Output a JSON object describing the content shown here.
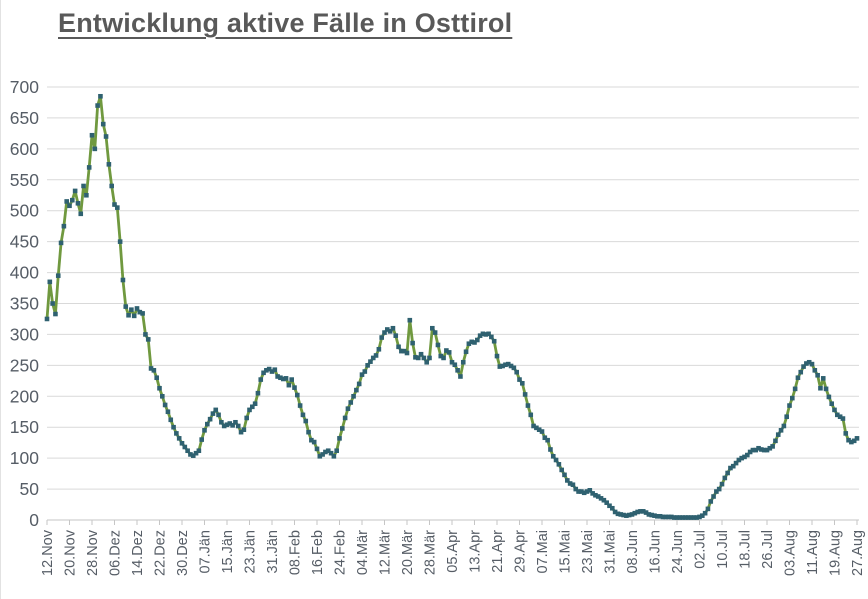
{
  "header": {
    "title": "Entwicklung aktive Fälle in Osttirol"
  },
  "chart_data": {
    "type": "line",
    "title": "Entwicklung aktive Fälle in Osttirol",
    "series_name": "aktive Fälle",
    "xlabel": "",
    "ylabel": "",
    "ylim": [
      0,
      700
    ],
    "y_tick_step": 50,
    "y_tick_labels": [
      "0",
      "50",
      "100",
      "150",
      "200",
      "250",
      "300",
      "350",
      "400",
      "450",
      "500",
      "550",
      "600",
      "650",
      "700"
    ],
    "grid": true,
    "legend": "none",
    "x_tick_labels": [
      "12.Nov",
      "20.Nov",
      "28.Nov",
      "06.Dez",
      "14.Dez",
      "22.Dez",
      "30.Dez",
      "07.Jän",
      "15.Jän",
      "23.Jän",
      "31.Jän",
      "08.Feb",
      "16.Feb",
      "24.Feb",
      "04.Mär",
      "12.Mär",
      "20.Mär",
      "28.Mär",
      "05.Apr",
      "13.Apr",
      "21.Apr",
      "29.Apr",
      "07.Mai",
      "15.Mai",
      "23.Mai",
      "31.Mai",
      "08.Jun",
      "16.Jun",
      "24.Jun",
      "02.Jul",
      "10.Jul",
      "18.Jul",
      "26.Jul",
      "03.Aug",
      "11.Aug",
      "19.Aug",
      "27.Aug"
    ],
    "tick_every_n_points": 8,
    "values": [
      325,
      385,
      350,
      333,
      395,
      448,
      475,
      515,
      508,
      517,
      532,
      512,
      495,
      540,
      525,
      570,
      622,
      600,
      670,
      685,
      640,
      620,
      575,
      540,
      510,
      505,
      450,
      388,
      345,
      331,
      340,
      330,
      342,
      336,
      334,
      300,
      292,
      245,
      242,
      230,
      213,
      200,
      186,
      175,
      162,
      150,
      140,
      132,
      124,
      118,
      112,
      106,
      104,
      108,
      112,
      130,
      145,
      155,
      163,
      172,
      178,
      170,
      158,
      152,
      154,
      156,
      153,
      158,
      152,
      142,
      146,
      165,
      178,
      183,
      188,
      205,
      227,
      238,
      242,
      244,
      240,
      243,
      232,
      230,
      228,
      229,
      218,
      227,
      214,
      202,
      185,
      170,
      160,
      142,
      129,
      126,
      115,
      103,
      106,
      110,
      112,
      108,
      103,
      112,
      132,
      148,
      165,
      180,
      190,
      200,
      210,
      220,
      235,
      240,
      250,
      256,
      262,
      266,
      276,
      295,
      303,
      308,
      305,
      310,
      298,
      280,
      273,
      273,
      270,
      323,
      286,
      263,
      262,
      268,
      262,
      255,
      262,
      310,
      303,
      283,
      265,
      262,
      274,
      271,
      255,
      251,
      242,
      232,
      255,
      272,
      285,
      288,
      287,
      291,
      298,
      301,
      300,
      301,
      296,
      289,
      265,
      248,
      249,
      251,
      252,
      249,
      246,
      239,
      227,
      221,
      203,
      185,
      170,
      152,
      149,
      146,
      143,
      133,
      129,
      114,
      103,
      97,
      90,
      81,
      73,
      64,
      59,
      57,
      50,
      46,
      46,
      44,
      46,
      48,
      43,
      40,
      38,
      35,
      32,
      28,
      23,
      19,
      13,
      10,
      9,
      8,
      7,
      8,
      9,
      11,
      13,
      14,
      14,
      12,
      9,
      8,
      7,
      6,
      6,
      5,
      5,
      5,
      5,
      4,
      4,
      4,
      4,
      4,
      4,
      4,
      4,
      4,
      5,
      7,
      11,
      18,
      30,
      38,
      46,
      50,
      58,
      68,
      76,
      84,
      87,
      92,
      97,
      100,
      102,
      105,
      110,
      113,
      113,
      116,
      114,
      113,
      113,
      116,
      119,
      128,
      138,
      145,
      152,
      167,
      185,
      197,
      212,
      230,
      239,
      248,
      253,
      255,
      252,
      242,
      234,
      213,
      229,
      212,
      199,
      188,
      178,
      170,
      167,
      164,
      140,
      129,
      126,
      128,
      132
    ],
    "colors": {
      "line": "#70993f",
      "marker": "#2f6170",
      "grid": "#d9d9d9",
      "axis": "#c6c6c6",
      "labels": "#565d66",
      "title": "#595959"
    },
    "marker_shape": "square"
  }
}
